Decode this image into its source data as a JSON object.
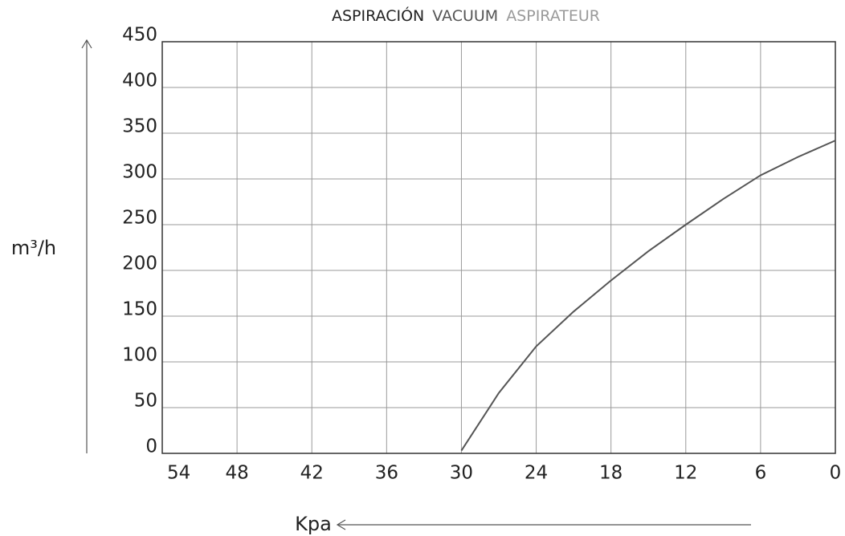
{
  "chart_data": {
    "type": "line",
    "title_parts": [
      {
        "text": "ASPIRACIÓN",
        "color": "#222222"
      },
      {
        "text": "VACUUM",
        "color": "#555555"
      },
      {
        "text": "ASPIRATEUR",
        "color": "#9a9a9a"
      }
    ],
    "y_label": "m³/h",
    "x_label": "Kpa",
    "x": [
      30,
      27,
      24,
      21,
      18,
      15,
      12,
      9,
      6,
      3,
      0
    ],
    "series": [
      {
        "name": null,
        "color": "#555555",
        "values": [
          3,
          66,
          117,
          155,
          189,
          221,
          250,
          278,
          304,
          324,
          342
        ]
      }
    ],
    "xlim": [
      54,
      0
    ],
    "xticks": [
      54,
      48,
      42,
      36,
      30,
      24,
      18,
      12,
      6,
      0
    ],
    "ylim": [
      0,
      450
    ],
    "yticks": [
      0,
      50,
      100,
      150,
      200,
      250,
      300,
      350,
      400,
      450
    ],
    "grid": true
  }
}
